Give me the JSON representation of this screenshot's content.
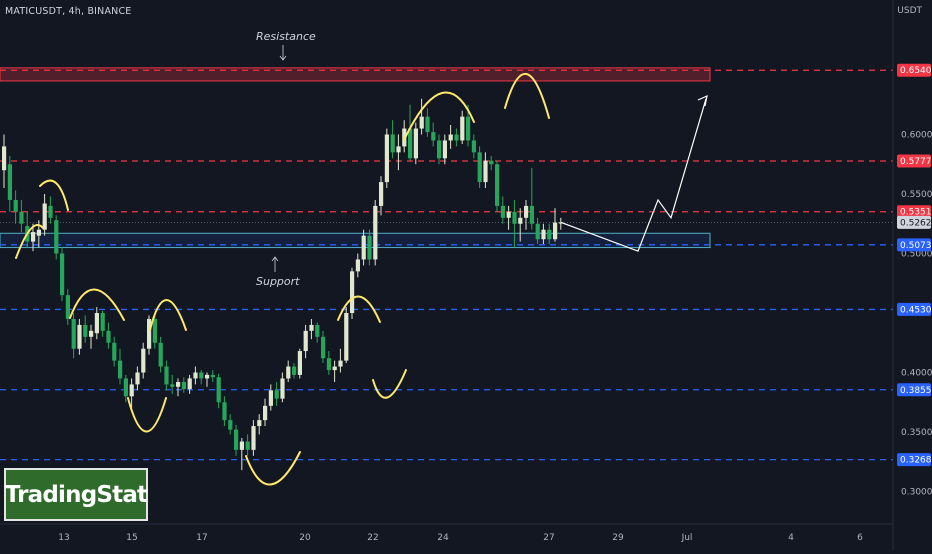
{
  "header": {
    "symbol": "MATICUSDT, 4h, BINANCE",
    "currency": "USDT"
  },
  "watermark": "TradingStat",
  "colors": {
    "background": "#131722",
    "up_candle": "#e1e6cf",
    "down_candle": "#26a65b",
    "resistance": "#f23645",
    "support": "#2962ff",
    "annotation": "#ffe96b"
  },
  "chart_data": {
    "type": "candlestick",
    "title": "",
    "ylim": [
      0.28,
      0.685
    ],
    "y_scale": "linear",
    "y_ticks": [
      0.3,
      0.35,
      0.4,
      0.45,
      0.5,
      0.55,
      0.6,
      0.65
    ],
    "y_tick_labels_hidden": [
      "0.4500",
      "0.5000",
      "0.6500"
    ],
    "x_tick_labels": [
      "13",
      "15",
      "17",
      "20",
      "22",
      "24",
      "27",
      "29",
      "Jul",
      "4",
      "6"
    ],
    "resistance_levels": [
      0.654,
      0.5777,
      0.5351
    ],
    "support_levels": [
      0.5073,
      0.453,
      0.3855,
      0.3268
    ],
    "level_labels": [
      {
        "text": "0.6540",
        "value": 0.654,
        "kind": "resistance"
      },
      {
        "text": "0.5777",
        "value": 0.5777,
        "kind": "resistance"
      },
      {
        "text": "0.5351",
        "value": 0.5351,
        "kind": "resistance"
      },
      {
        "text": "0.5262",
        "value": 0.5262,
        "kind": "last"
      },
      {
        "text": "0.5073",
        "value": 0.5073,
        "kind": "support"
      },
      {
        "text": "0.4530",
        "value": 0.453,
        "kind": "support"
      },
      {
        "text": "0.3855",
        "value": 0.3855,
        "kind": "support"
      },
      {
        "text": "0.3268",
        "value": 0.3268,
        "kind": "support"
      }
    ],
    "zones": [
      {
        "label": "Resistance",
        "from": 0.645,
        "to": 0.656
      },
      {
        "label": "Support",
        "from": 0.505,
        "to": 0.517
      }
    ],
    "annotations": [
      "Resistance",
      "Support"
    ],
    "candles": [
      {
        "o": 0.57,
        "h": 0.6,
        "l": 0.555,
        "c": 0.59
      },
      {
        "o": 0.575,
        "h": 0.582,
        "l": 0.535,
        "c": 0.545
      },
      {
        "o": 0.545,
        "h": 0.553,
        "l": 0.525,
        "c": 0.535
      },
      {
        "o": 0.535,
        "h": 0.545,
        "l": 0.518,
        "c": 0.525
      },
      {
        "o": 0.523,
        "h": 0.535,
        "l": 0.505,
        "c": 0.51
      },
      {
        "o": 0.51,
        "h": 0.525,
        "l": 0.502,
        "c": 0.518
      },
      {
        "o": 0.515,
        "h": 0.528,
        "l": 0.505,
        "c": 0.52
      },
      {
        "o": 0.52,
        "h": 0.55,
        "l": 0.515,
        "c": 0.542
      },
      {
        "o": 0.54,
        "h": 0.548,
        "l": 0.525,
        "c": 0.53
      },
      {
        "o": 0.528,
        "h": 0.532,
        "l": 0.495,
        "c": 0.5
      },
      {
        "o": 0.5,
        "h": 0.505,
        "l": 0.46,
        "c": 0.465
      },
      {
        "o": 0.465,
        "h": 0.47,
        "l": 0.44,
        "c": 0.445
      },
      {
        "o": 0.445,
        "h": 0.45,
        "l": 0.412,
        "c": 0.42
      },
      {
        "o": 0.42,
        "h": 0.445,
        "l": 0.415,
        "c": 0.44
      },
      {
        "o": 0.44,
        "h": 0.448,
        "l": 0.425,
        "c": 0.43
      },
      {
        "o": 0.43,
        "h": 0.44,
        "l": 0.42,
        "c": 0.435
      },
      {
        "o": 0.433,
        "h": 0.455,
        "l": 0.428,
        "c": 0.45
      },
      {
        "o": 0.45,
        "h": 0.452,
        "l": 0.43,
        "c": 0.435
      },
      {
        "o": 0.435,
        "h": 0.442,
        "l": 0.42,
        "c": 0.425
      },
      {
        "o": 0.425,
        "h": 0.43,
        "l": 0.405,
        "c": 0.41
      },
      {
        "o": 0.41,
        "h": 0.42,
        "l": 0.39,
        "c": 0.395
      },
      {
        "o": 0.395,
        "h": 0.398,
        "l": 0.375,
        "c": 0.38
      },
      {
        "o": 0.38,
        "h": 0.395,
        "l": 0.37,
        "c": 0.39
      },
      {
        "o": 0.39,
        "h": 0.405,
        "l": 0.385,
        "c": 0.4
      },
      {
        "o": 0.4,
        "h": 0.425,
        "l": 0.395,
        "c": 0.42
      },
      {
        "o": 0.42,
        "h": 0.448,
        "l": 0.415,
        "c": 0.445
      },
      {
        "o": 0.445,
        "h": 0.45,
        "l": 0.42,
        "c": 0.425
      },
      {
        "o": 0.425,
        "h": 0.43,
        "l": 0.4,
        "c": 0.405
      },
      {
        "o": 0.405,
        "h": 0.41,
        "l": 0.385,
        "c": 0.39
      },
      {
        "o": 0.39,
        "h": 0.398,
        "l": 0.382,
        "c": 0.388
      },
      {
        "o": 0.388,
        "h": 0.395,
        "l": 0.38,
        "c": 0.392
      },
      {
        "o": 0.392,
        "h": 0.396,
        "l": 0.383,
        "c": 0.386
      },
      {
        "o": 0.386,
        "h": 0.398,
        "l": 0.382,
        "c": 0.395
      },
      {
        "o": 0.395,
        "h": 0.405,
        "l": 0.39,
        "c": 0.4
      },
      {
        "o": 0.4,
        "h": 0.402,
        "l": 0.39,
        "c": 0.395
      },
      {
        "o": 0.395,
        "h": 0.4,
        "l": 0.388,
        "c": 0.398
      },
      {
        "o": 0.398,
        "h": 0.402,
        "l": 0.392,
        "c": 0.396
      },
      {
        "o": 0.396,
        "h": 0.399,
        "l": 0.37,
        "c": 0.375
      },
      {
        "o": 0.375,
        "h": 0.38,
        "l": 0.355,
        "c": 0.36
      },
      {
        "o": 0.36,
        "h": 0.365,
        "l": 0.348,
        "c": 0.352
      },
      {
        "o": 0.352,
        "h": 0.356,
        "l": 0.33,
        "c": 0.335
      },
      {
        "o": 0.335,
        "h": 0.345,
        "l": 0.318,
        "c": 0.342
      },
      {
        "o": 0.342,
        "h": 0.348,
        "l": 0.33,
        "c": 0.335
      },
      {
        "o": 0.335,
        "h": 0.36,
        "l": 0.33,
        "c": 0.355
      },
      {
        "o": 0.355,
        "h": 0.365,
        "l": 0.348,
        "c": 0.36
      },
      {
        "o": 0.36,
        "h": 0.378,
        "l": 0.355,
        "c": 0.372
      },
      {
        "o": 0.372,
        "h": 0.39,
        "l": 0.368,
        "c": 0.385
      },
      {
        "o": 0.385,
        "h": 0.392,
        "l": 0.372,
        "c": 0.378
      },
      {
        "o": 0.378,
        "h": 0.4,
        "l": 0.375,
        "c": 0.395
      },
      {
        "o": 0.395,
        "h": 0.41,
        "l": 0.392,
        "c": 0.405
      },
      {
        "o": 0.405,
        "h": 0.408,
        "l": 0.395,
        "c": 0.398
      },
      {
        "o": 0.398,
        "h": 0.42,
        "l": 0.395,
        "c": 0.418
      },
      {
        "o": 0.418,
        "h": 0.44,
        "l": 0.412,
        "c": 0.435
      },
      {
        "o": 0.435,
        "h": 0.445,
        "l": 0.428,
        "c": 0.44
      },
      {
        "o": 0.44,
        "h": 0.442,
        "l": 0.425,
        "c": 0.43
      },
      {
        "o": 0.43,
        "h": 0.435,
        "l": 0.408,
        "c": 0.412
      },
      {
        "o": 0.412,
        "h": 0.418,
        "l": 0.398,
        "c": 0.402
      },
      {
        "o": 0.402,
        "h": 0.41,
        "l": 0.392,
        "c": 0.405
      },
      {
        "o": 0.405,
        "h": 0.42,
        "l": 0.4,
        "c": 0.41
      },
      {
        "o": 0.41,
        "h": 0.455,
        "l": 0.408,
        "c": 0.45
      },
      {
        "o": 0.45,
        "h": 0.488,
        "l": 0.445,
        "c": 0.485
      },
      {
        "o": 0.485,
        "h": 0.5,
        "l": 0.48,
        "c": 0.495
      },
      {
        "o": 0.495,
        "h": 0.52,
        "l": 0.49,
        "c": 0.515
      },
      {
        "o": 0.515,
        "h": 0.52,
        "l": 0.49,
        "c": 0.495
      },
      {
        "o": 0.495,
        "h": 0.545,
        "l": 0.49,
        "c": 0.54
      },
      {
        "o": 0.54,
        "h": 0.565,
        "l": 0.532,
        "c": 0.56
      },
      {
        "o": 0.56,
        "h": 0.605,
        "l": 0.555,
        "c": 0.6
      },
      {
        "o": 0.6,
        "h": 0.612,
        "l": 0.58,
        "c": 0.585
      },
      {
        "o": 0.585,
        "h": 0.6,
        "l": 0.57,
        "c": 0.59
      },
      {
        "o": 0.59,
        "h": 0.612,
        "l": 0.585,
        "c": 0.605
      },
      {
        "o": 0.605,
        "h": 0.625,
        "l": 0.578,
        "c": 0.58
      },
      {
        "o": 0.58,
        "h": 0.61,
        "l": 0.575,
        "c": 0.605
      },
      {
        "o": 0.605,
        "h": 0.63,
        "l": 0.6,
        "c": 0.615
      },
      {
        "o": 0.615,
        "h": 0.622,
        "l": 0.598,
        "c": 0.602
      },
      {
        "o": 0.602,
        "h": 0.61,
        "l": 0.59,
        "c": 0.595
      },
      {
        "o": 0.595,
        "h": 0.6,
        "l": 0.575,
        "c": 0.58
      },
      {
        "o": 0.58,
        "h": 0.6,
        "l": 0.575,
        "c": 0.595
      },
      {
        "o": 0.595,
        "h": 0.608,
        "l": 0.588,
        "c": 0.6
      },
      {
        "o": 0.6,
        "h": 0.605,
        "l": 0.59,
        "c": 0.595
      },
      {
        "o": 0.595,
        "h": 0.62,
        "l": 0.592,
        "c": 0.615
      },
      {
        "o": 0.615,
        "h": 0.625,
        "l": 0.59,
        "c": 0.595
      },
      {
        "o": 0.595,
        "h": 0.6,
        "l": 0.58,
        "c": 0.585
      },
      {
        "o": 0.585,
        "h": 0.59,
        "l": 0.555,
        "c": 0.56
      },
      {
        "o": 0.56,
        "h": 0.585,
        "l": 0.555,
        "c": 0.578
      },
      {
        "o": 0.578,
        "h": 0.582,
        "l": 0.57,
        "c": 0.575
      },
      {
        "o": 0.575,
        "h": 0.578,
        "l": 0.535,
        "c": 0.54
      },
      {
        "o": 0.54,
        "h": 0.548,
        "l": 0.525,
        "c": 0.53
      },
      {
        "o": 0.53,
        "h": 0.54,
        "l": 0.52,
        "c": 0.535
      },
      {
        "o": 0.535,
        "h": 0.545,
        "l": 0.505,
        "c": 0.525
      },
      {
        "o": 0.525,
        "h": 0.538,
        "l": 0.51,
        "c": 0.53
      },
      {
        "o": 0.53,
        "h": 0.545,
        "l": 0.52,
        "c": 0.54
      },
      {
        "o": 0.54,
        "h": 0.572,
        "l": 0.52,
        "c": 0.525
      },
      {
        "o": 0.525,
        "h": 0.53,
        "l": 0.508,
        "c": 0.512
      },
      {
        "o": 0.512,
        "h": 0.525,
        "l": 0.508,
        "c": 0.52
      },
      {
        "o": 0.52,
        "h": 0.525,
        "l": 0.508,
        "c": 0.512
      },
      {
        "o": 0.512,
        "h": 0.538,
        "l": 0.51,
        "c": 0.526
      },
      {
        "o": 0.526,
        "h": 0.53,
        "l": 0.52,
        "c": 0.5262
      }
    ],
    "projection": [
      0.502,
      0.545,
      0.53,
      0.63
    ],
    "legend": "none",
    "grid": false
  }
}
